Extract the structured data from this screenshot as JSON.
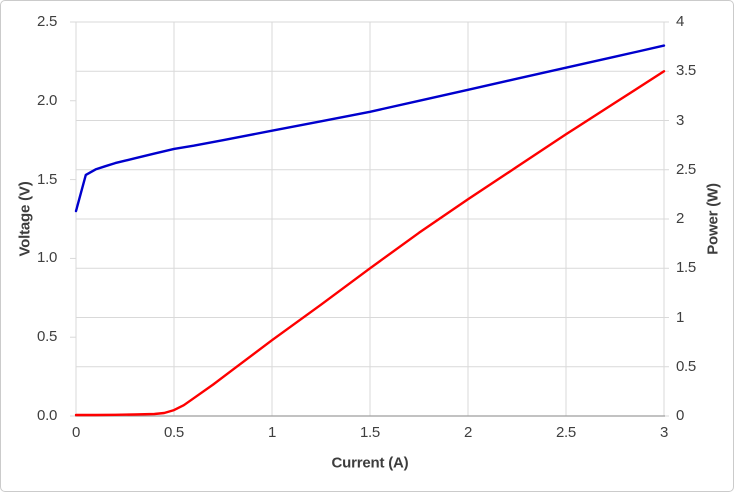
{
  "chart": {
    "background": "#ffffff",
    "border_color": "#cbcbcb",
    "grid_color": "#d9d9d9",
    "axis_line_color": "#9e9e9e",
    "text_color": "#3f3f3f",
    "x_axis": {
      "label": "Current (A)",
      "tick_labels": [
        "0",
        "0.5",
        "1",
        "1.5",
        "2",
        "2.5",
        "3"
      ],
      "tick_values": [
        0,
        0.5,
        1,
        1.5,
        2,
        2.5,
        3
      ]
    },
    "y_left": {
      "label": "Voltage (V)",
      "tick_labels": [
        "0.0",
        "0.5",
        "1.0",
        "1.5",
        "2.0",
        "2.5"
      ],
      "tick_values": [
        0,
        0.5,
        1,
        1.5,
        2,
        2.5
      ]
    },
    "y_right": {
      "label": "Power (W)",
      "tick_labels": [
        "0",
        "0.5",
        "1",
        "1.5",
        "2",
        "2.5",
        "3",
        "3.5",
        "4"
      ],
      "tick_values": [
        0,
        0.5,
        1,
        1.5,
        2,
        2.5,
        3,
        3.5,
        4
      ]
    }
  },
  "chart_data": {
    "type": "line",
    "title": "",
    "xlabel": "Current (A)",
    "ylabel_left": "Voltage (V)",
    "ylabel_right": "Power (W)",
    "xlim": [
      0,
      3
    ],
    "ylim_left": [
      0,
      2.5
    ],
    "ylim_right": [
      0,
      4
    ],
    "grid": "on",
    "legend": "none",
    "series": [
      {
        "name": "Voltage (V)",
        "y_axis": "left",
        "color": "#0000cd",
        "x": [
          0,
          0.05,
          0.1,
          0.15,
          0.2,
          0.25,
          0.3,
          0.4,
          0.5,
          0.6,
          0.75,
          1.0,
          1.25,
          1.5,
          1.75,
          2.0,
          2.25,
          2.5,
          2.75,
          3.0
        ],
        "y": [
          1.3,
          1.53,
          1.565,
          1.585,
          1.605,
          1.62,
          1.635,
          1.665,
          1.695,
          1.715,
          1.75,
          1.81,
          1.87,
          1.93,
          2.0,
          2.07,
          2.14,
          2.21,
          2.28,
          2.35
        ]
      },
      {
        "name": "Power (W)",
        "y_axis": "right",
        "color": "#fe0000",
        "x": [
          0,
          0.1,
          0.2,
          0.3,
          0.4,
          0.45,
          0.5,
          0.55,
          0.6,
          0.7,
          0.8,
          1.0,
          1.25,
          1.5,
          1.75,
          2.0,
          2.25,
          2.5,
          2.75,
          3.0
        ],
        "y": [
          0.01,
          0.01,
          0.012,
          0.015,
          0.02,
          0.03,
          0.06,
          0.11,
          0.18,
          0.32,
          0.47,
          0.77,
          1.13,
          1.5,
          1.86,
          2.2,
          2.53,
          2.86,
          3.18,
          3.5
        ]
      }
    ]
  }
}
